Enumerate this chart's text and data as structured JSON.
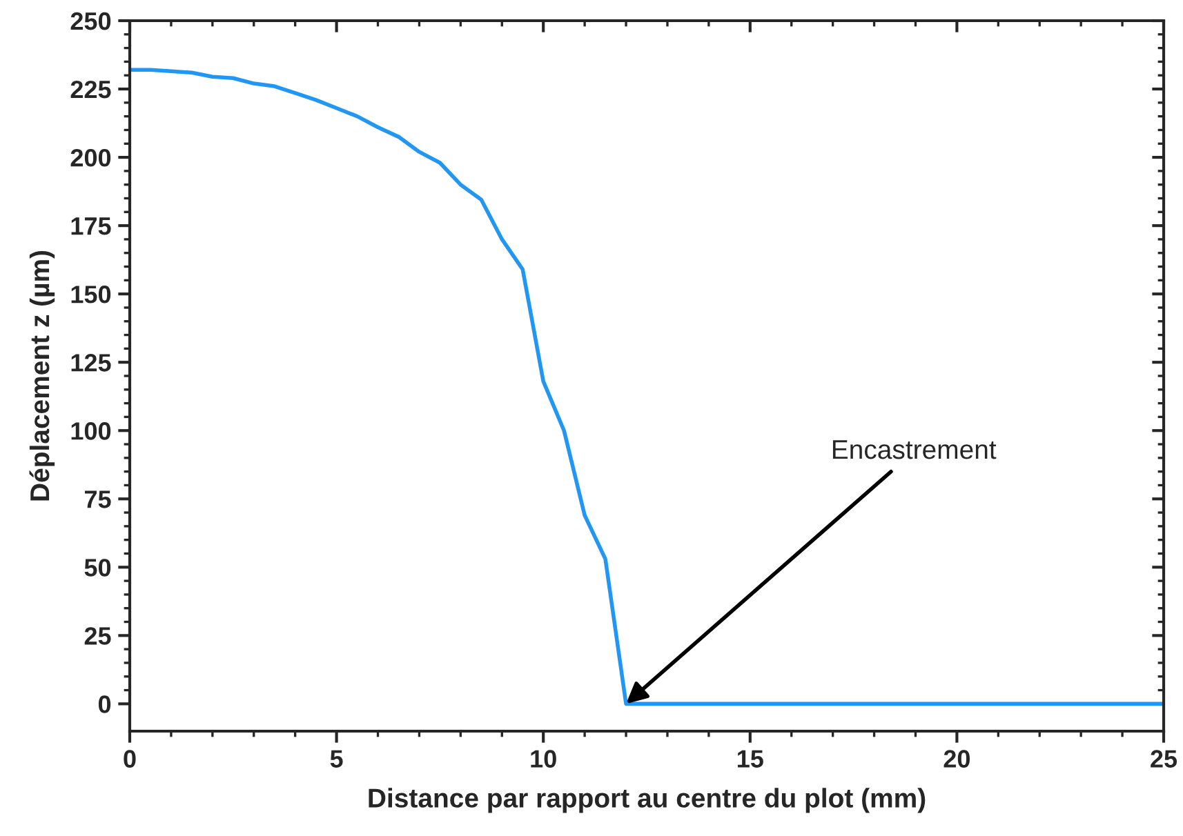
{
  "chart_data": {
    "type": "line",
    "xlabel": "Distance par rapport au centre du plot (mm)",
    "ylabel": "Déplacement z (µm)",
    "x": [
      0,
      0.5,
      1,
      1.5,
      2,
      2.5,
      3,
      3.5,
      4,
      4.5,
      5,
      5.5,
      6,
      6.5,
      7,
      7.5,
      8,
      8.5,
      9,
      9.5,
      10,
      10.5,
      11,
      11.5,
      12,
      25
    ],
    "series": [
      {
        "color": "#2196f3",
        "values": [
          232,
          232,
          231.5,
          231,
          229.5,
          229,
          227,
          226,
          223.5,
          221,
          218,
          215,
          211,
          207.5,
          202,
          198,
          190,
          184.5,
          170,
          159,
          118,
          100,
          69,
          53,
          0,
          0
        ]
      }
    ],
    "annotations": [
      {
        "text": "Encastrement",
        "x": 12,
        "y": 0
      }
    ],
    "xlim": [
      0,
      25
    ],
    "xticks": [
      0,
      5,
      10,
      15,
      20,
      25
    ],
    "ylim": [
      -10,
      250
    ],
    "yticks": [
      0,
      25,
      50,
      75,
      100,
      125,
      150,
      175,
      200,
      225,
      250
    ],
    "grid": false,
    "legend": false,
    "marker": "none",
    "line_style": "solid"
  }
}
